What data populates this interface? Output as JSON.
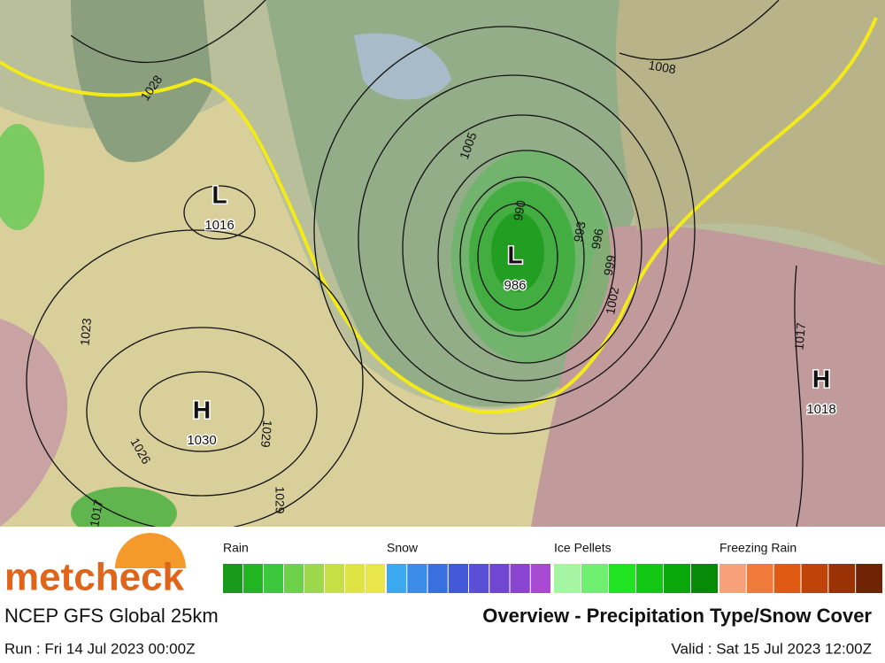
{
  "header": {
    "logo": "metcheck",
    "model": "NCEP GFS Global 25km",
    "title": "Overview - Precipitation Type/Snow Cover",
    "run": "Run : Fri 14 Jul 2023 00:00Z",
    "valid": "Valid : Sat 15 Jul 2023 12:00Z"
  },
  "systems": [
    {
      "symbol": "L",
      "pressure": 1016
    },
    {
      "symbol": "H",
      "pressure": 1030
    },
    {
      "symbol": "L",
      "pressure": 986
    },
    {
      "symbol": "H",
      "pressure": 1018
    }
  ],
  "isobar_labels": [
    1028,
    1005,
    1008,
    990,
    993,
    996,
    999,
    1002,
    1023,
    1026,
    1029,
    1017,
    1029,
    1017
  ],
  "legend": [
    {
      "name": "Rain",
      "colors": [
        "#1a9a1a",
        "#21b521",
        "#3cc83c",
        "#6fd04a",
        "#9dd84c",
        "#c5df45",
        "#dfe343",
        "#e8e64a"
      ]
    },
    {
      "name": "Snow",
      "colors": [
        "#3ba9ef",
        "#3a8ce8",
        "#3a6fe0",
        "#4458da",
        "#5a4fd6",
        "#7047d2",
        "#8a45d0",
        "#a84bd2"
      ]
    },
    {
      "name": "Ice Pellets",
      "colors": [
        "#a5f5a5",
        "#6ef06e",
        "#22e322",
        "#12c812",
        "#0aa80a",
        "#078a07"
      ]
    },
    {
      "name": "Freezing Rain",
      "colors": [
        "#f7a07a",
        "#f07a3a",
        "#e05a14",
        "#c04408",
        "#9a3206",
        "#6f2204"
      ]
    }
  ]
}
